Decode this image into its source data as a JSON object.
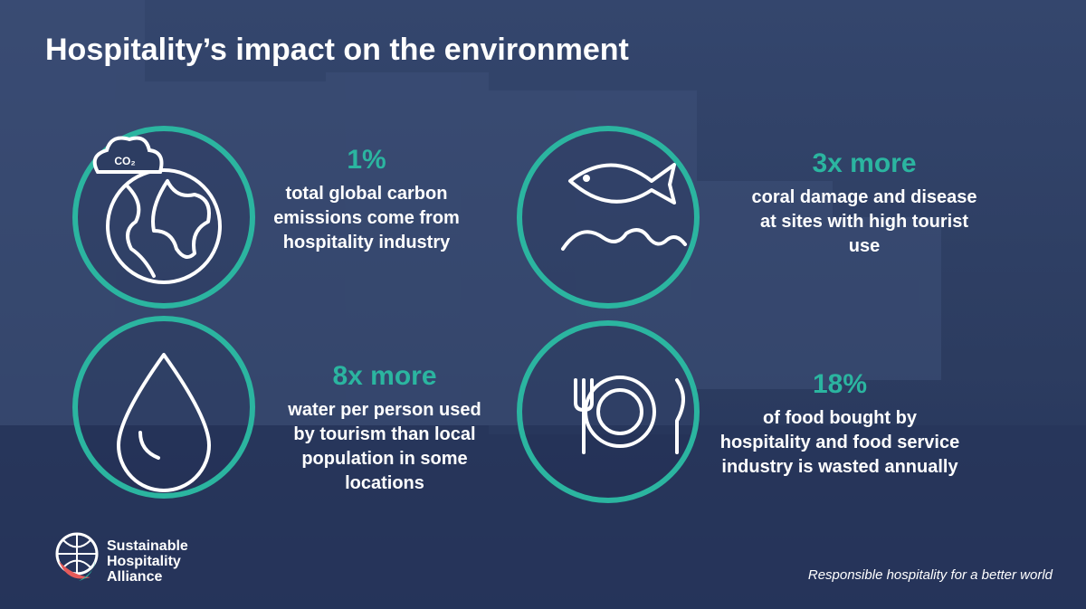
{
  "header": {
    "title": "Hospitality’s impact on the environment"
  },
  "icon_text": {
    "co2": "CO₂"
  },
  "stats": [
    {
      "value": "1%",
      "lines": [
        "total global carbon",
        "emissions come from",
        "hospitality industry"
      ]
    },
    {
      "value": "3x more",
      "lines": [
        "coral damage and disease",
        "at sites with high tourist",
        "use"
      ]
    },
    {
      "value": "8x more",
      "lines": [
        "water per person used",
        "by tourism than local",
        "population in some",
        "locations"
      ]
    },
    {
      "value": "18%",
      "lines": [
        "of food bought by",
        "hospitality and food service",
        "industry is wasted annually"
      ]
    }
  ],
  "logo": {
    "lines": [
      "Sustainable",
      "Hospitality",
      "Alliance"
    ]
  },
  "footer": {
    "tagline": "Responsible hospitality for a better world"
  }
}
